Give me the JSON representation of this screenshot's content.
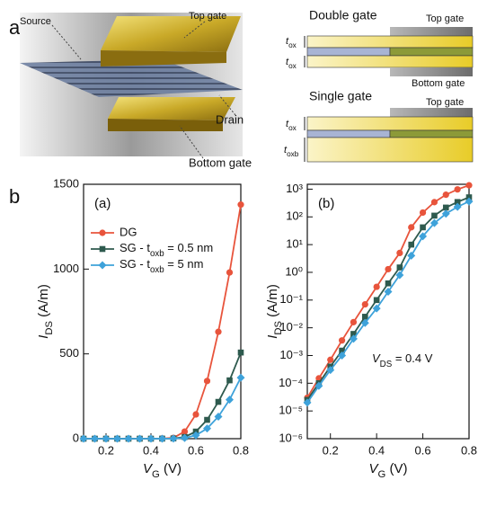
{
  "panel_labels": [
    "a",
    "b"
  ],
  "illustration": {
    "source": "Source",
    "top_gate": "Top gate",
    "drain": "Drain",
    "bottom_gate": "Bottom gate"
  },
  "schematic": {
    "double_gate": "Double gate",
    "dg_top_gate": "Top gate",
    "dg_tox_top": "t_ox",
    "dg_tox_bottom": "t_ox",
    "dg_bottom_gate": "Bottom gate",
    "single_gate": "Single gate",
    "sg_top_gate": "Top gate",
    "sg_tox": "t_ox",
    "sg_toxb": "t_oxb"
  },
  "chart_data": [
    {
      "type": "line",
      "panel": "(a)",
      "x_label": "V_G (V)",
      "y_label": "I_DS (A/m)",
      "x": [
        0.1,
        0.15,
        0.2,
        0.25,
        0.3,
        0.35,
        0.4,
        0.45,
        0.5,
        0.55,
        0.6,
        0.65,
        0.7,
        0.75,
        0.8
      ],
      "xlim": [
        0.1,
        0.8
      ],
      "xticks": [
        0.2,
        0.4,
        0.6,
        0.8
      ],
      "ylim": [
        0,
        1500
      ],
      "yticks": [
        0,
        500,
        1000,
        1500
      ],
      "log_y": false,
      "legend": "upper left",
      "series": [
        {
          "name": "DG",
          "color": "#e8543c",
          "marker": "circle",
          "values": [
            3e-05,
            0.00015,
            0.0007,
            0.0035,
            0.016,
            0.07,
            0.3,
            1.3,
            5,
            42,
            143,
            340,
            630,
            980,
            1380
          ]
        },
        {
          "name": "SG - t_oxb = 0.5 nm",
          "color": "#2e5a4e",
          "marker": "square",
          "values": [
            2.5e-05,
            0.0001,
            0.0004,
            0.0015,
            0.006,
            0.025,
            0.1,
            0.4,
            1.5,
            10,
            42,
            111,
            217,
            344,
            508
          ]
        },
        {
          "name": "SG - t_oxb = 5 nm",
          "color": "#3ea2da",
          "marker": "diamond",
          "values": [
            2e-05,
            8e-05,
            0.0003,
            0.001,
            0.004,
            0.015,
            0.05,
            0.2,
            0.8,
            4,
            20,
            60,
            130,
            230,
            360
          ]
        }
      ]
    },
    {
      "type": "line",
      "panel": "(b)",
      "x_label": "V_G (V)",
      "y_label": "I_DS (A/m)",
      "annotation": "V_DS = 0.4 V",
      "x": [
        0.1,
        0.15,
        0.2,
        0.25,
        0.3,
        0.35,
        0.4,
        0.45,
        0.5,
        0.55,
        0.6,
        0.65,
        0.7,
        0.75,
        0.8
      ],
      "xlim": [
        0.1,
        0.8
      ],
      "xticks": [
        0.2,
        0.4,
        0.6,
        0.8
      ],
      "ylim": [
        1e-06,
        1500
      ],
      "yticks": [
        {
          "value": 1e-06,
          "label": "10⁻⁶"
        },
        {
          "value": 1e-05,
          "label": "10⁻⁵"
        },
        {
          "value": 0.0001,
          "label": "10⁻⁴"
        },
        {
          "value": 0.001,
          "label": "10⁻³"
        },
        {
          "value": 0.01,
          "label": "10⁻²"
        },
        {
          "value": 0.1,
          "label": "10⁻¹"
        },
        {
          "value": 1,
          "label": "10⁰"
        },
        {
          "value": 10,
          "label": "10¹"
        },
        {
          "value": 100,
          "label": "10²"
        },
        {
          "value": 1000,
          "label": "10³"
        }
      ],
      "log_y": true,
      "series": [
        {
          "name": "DG",
          "color": "#e8543c",
          "marker": "circle",
          "values": [
            3e-05,
            0.00015,
            0.0007,
            0.0035,
            0.016,
            0.07,
            0.3,
            1.3,
            5,
            42,
            143,
            340,
            630,
            980,
            1380
          ]
        },
        {
          "name": "SG - t_oxb = 0.5 nm",
          "color": "#2e5a4e",
          "marker": "square",
          "values": [
            2.5e-05,
            0.0001,
            0.0004,
            0.0015,
            0.006,
            0.025,
            0.1,
            0.4,
            1.5,
            10,
            42,
            111,
            217,
            344,
            508
          ]
        },
        {
          "name": "SG - t_oxb = 5 nm",
          "color": "#3ea2da",
          "marker": "diamond",
          "values": [
            2e-05,
            8e-05,
            0.0003,
            0.001,
            0.004,
            0.015,
            0.05,
            0.2,
            0.8,
            4,
            20,
            60,
            130,
            230,
            360
          ]
        }
      ]
    }
  ]
}
